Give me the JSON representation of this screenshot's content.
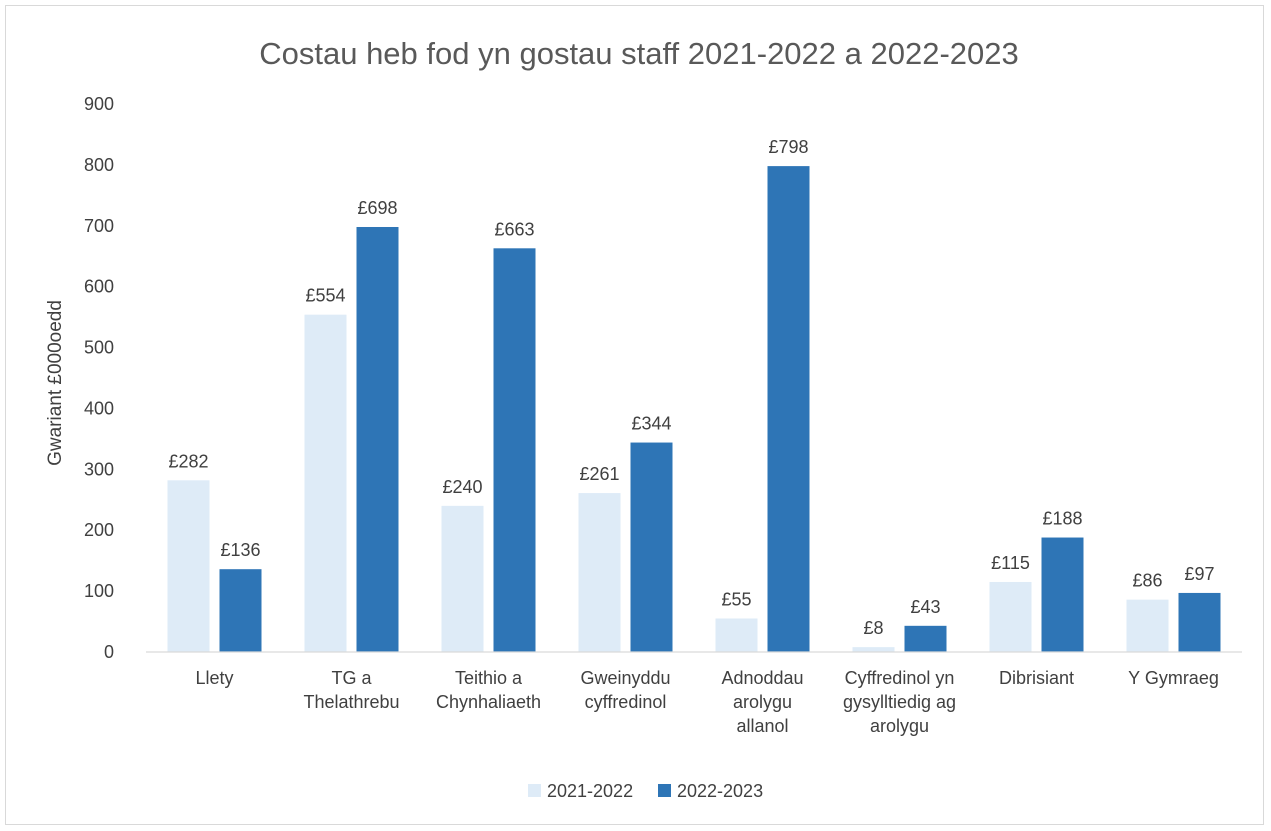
{
  "chart_data": {
    "type": "bar",
    "title": "Costau heb fod yn gostau staff 2021-2022 a 2022-2023",
    "ylabel": "Gwariant  £000oedd",
    "xlabel": "",
    "ylim": [
      0,
      900
    ],
    "yticks": [
      0,
      100,
      200,
      300,
      400,
      500,
      600,
      700,
      800,
      900
    ],
    "grid": false,
    "legend_position": "bottom",
    "categories": [
      [
        "Llety"
      ],
      [
        "TG a",
        "Thelathrebu"
      ],
      [
        "Teithio a",
        "Chynhaliaeth"
      ],
      [
        "Gweinyddu",
        "cyffredinol"
      ],
      [
        "Adnoddau",
        "arolygu",
        "allanol"
      ],
      [
        "Cyffredinol yn",
        "gysylltiedig ag",
        "arolygu"
      ],
      [
        "Dibrisiant"
      ],
      [
        "Y Gymraeg"
      ]
    ],
    "series": [
      {
        "name": "2021-2022",
        "color": "#deebf7",
        "values": [
          282,
          554,
          240,
          261,
          55,
          8,
          115,
          86
        ],
        "labels": [
          "£282",
          "£554",
          "£240",
          "£261",
          "£55",
          "£8",
          "£115",
          "£86"
        ]
      },
      {
        "name": "2022-2023",
        "color": "#2e75b6",
        "values": [
          136,
          698,
          663,
          344,
          798,
          43,
          188,
          97
        ],
        "labels": [
          "£136",
          "£698",
          "£663",
          "£344",
          "£798",
          "£43",
          "£188",
          "£97"
        ]
      }
    ]
  }
}
